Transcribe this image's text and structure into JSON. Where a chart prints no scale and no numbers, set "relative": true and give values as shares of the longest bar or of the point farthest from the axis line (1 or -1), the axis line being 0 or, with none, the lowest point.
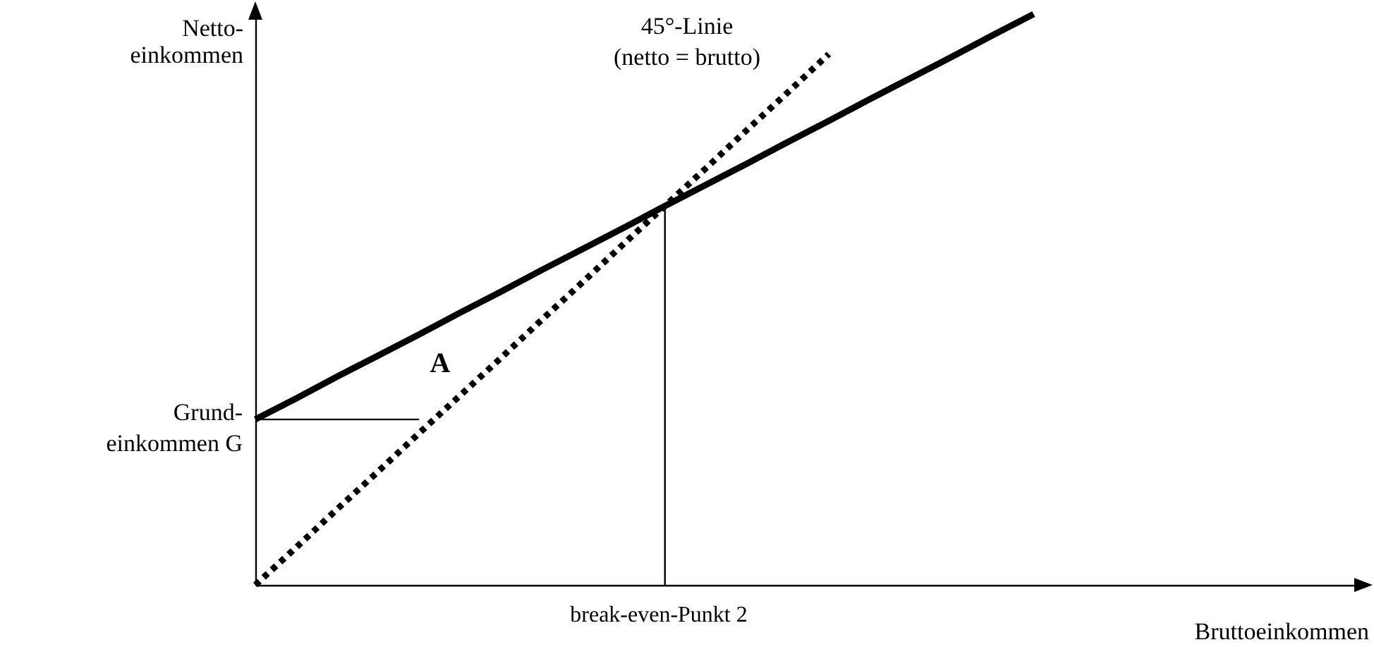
{
  "chart_data": {
    "type": "line",
    "relative": true,
    "xlabel": "Bruttoeinkommen",
    "ylabel": "Netto-\neinkommen",
    "categories": [
      null,
      null,
      null,
      null,
      null,
      null,
      null,
      null,
      null,
      null,
      null,
      null,
      null,
      null,
      null,
      null,
      null,
      null,
      null,
      null,
      null,
      null,
      null,
      null,
      null,
      null,
      null,
      null
    ],
    "series": [
      {
        "color": "#000000",
        "line_style": "solid",
        "values": [
          0.29,
          0.327,
          0.365,
          0.402,
          0.439,
          0.477,
          0.514,
          0.552,
          0.589,
          0.626,
          0.664,
          0.701,
          0.738,
          0.776,
          0.813,
          0.851,
          0.888,
          0.925,
          0.963,
          1.0,
          null,
          null,
          null,
          null,
          null,
          null,
          null,
          null
        ]
      },
      {
        "color": "#000000",
        "line_style": "dotted",
        "values": [
          0,
          0.066,
          0.133,
          0.199,
          0.266,
          0.332,
          0.398,
          0.465,
          0.531,
          0.598,
          0.664,
          0.73,
          0.797,
          0.863,
          0.93,
          null,
          null,
          null,
          null,
          null,
          null,
          null,
          null,
          null,
          null,
          null,
          null,
          null
        ]
      },
      {
        "color": "#000000",
        "line_style": "solid",
        "values": [
          0.29,
          0.29,
          0.29,
          0.29,
          0.29,
          null,
          null,
          null,
          null,
          null,
          null,
          null,
          null,
          null,
          null,
          null,
          null,
          null,
          null,
          null,
          null,
          null,
          null,
          null,
          null,
          null,
          null,
          null
        ]
      }
    ],
    "annotations": [
      "45°-Linie\n(netto = brutto)",
      "A",
      "Grund-\neinkommen G",
      "break-even-Punkt 2"
    ],
    "grid": false,
    "marker": "none"
  }
}
